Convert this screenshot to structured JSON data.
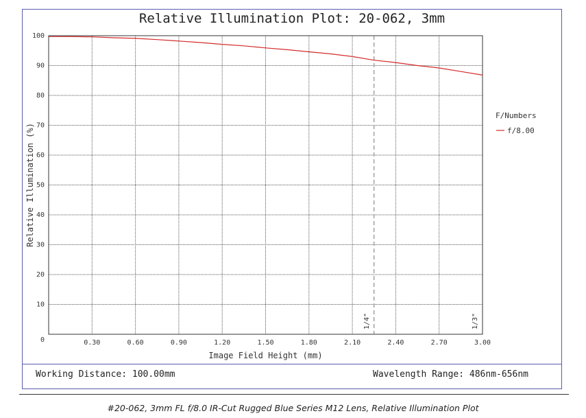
{
  "footer": {
    "working_distance": "Working Distance: 100.00mm",
    "wavelength_range": "Wavelength Range: 486nm-656nm"
  },
  "caption": "#20-062, 3mm FL f/8.0 IR-Cut Rugged Blue Series M12 Lens, Relative Illumination Plot",
  "colors": {
    "series": "#d42a2a",
    "frame": "#5a5ab0",
    "grid": "#555555",
    "marker": "#777777"
  },
  "chart_data": {
    "type": "line",
    "title": "Relative Illumination Plot: 20-062, 3mm",
    "xlabel": "Image Field Height (mm)",
    "ylabel": "Relative Illumination (%)",
    "xlim": [
      0,
      3.0
    ],
    "ylim": [
      0,
      100
    ],
    "x_ticks": [
      "0.30",
      "0.60",
      "0.90",
      "1.20",
      "1.50",
      "1.80",
      "2.10",
      "2.40",
      "2.70",
      "3.00"
    ],
    "y_ticks": [
      "0",
      "10",
      "20",
      "30",
      "40",
      "50",
      "60",
      "70",
      "80",
      "90",
      "100"
    ],
    "grid": true,
    "legend": {
      "title": "F/Numbers",
      "placement": "right"
    },
    "series": [
      {
        "name": "f/8.00",
        "x": [
          0,
          0.15,
          0.3,
          0.45,
          0.6,
          0.75,
          0.9,
          1.05,
          1.2,
          1.35,
          1.5,
          1.65,
          1.8,
          1.95,
          2.1,
          2.25,
          2.4,
          2.55,
          2.7,
          2.85,
          3.0
        ],
        "y": [
          99.7,
          99.7,
          99.6,
          99.3,
          99.1,
          98.7,
          98.2,
          97.7,
          97.1,
          96.6,
          95.9,
          95.3,
          94.6,
          93.9,
          93.0,
          91.8,
          91.0,
          90.0,
          89.2,
          88.0,
          86.8
        ]
      }
    ],
    "markers": [
      {
        "x": 2.25,
        "label": "1/4\""
      },
      {
        "x": 3.0,
        "label": "1/3\""
      }
    ]
  }
}
